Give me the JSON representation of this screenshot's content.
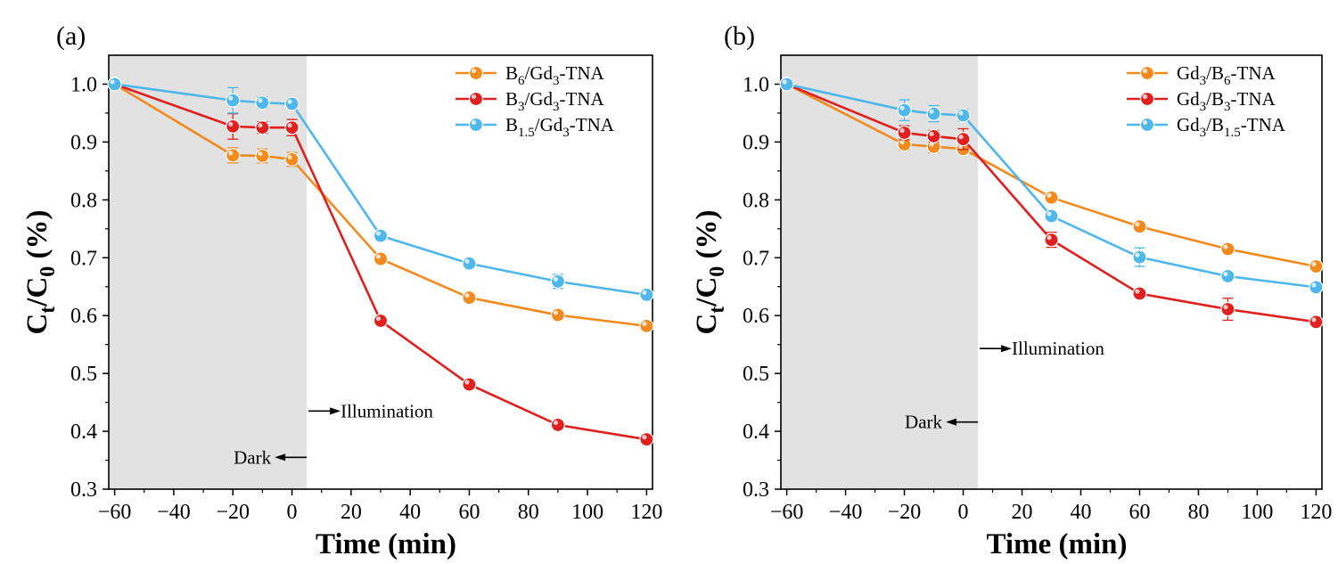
{
  "colors": {
    "orange": "#F28A1E",
    "red": "#E0201F",
    "blue": "#4FB7EA",
    "dark_region": "#E2E2E2",
    "axis": "#000000"
  },
  "chart_data": [
    {
      "type": "line",
      "panel_label": "(a)",
      "xlabel": "Time (min)",
      "ylabel": "Ct/C0 (%)",
      "xlim": [
        -62,
        122
      ],
      "ylim": [
        0.3,
        1.05
      ],
      "xticks": [
        -60,
        -40,
        -20,
        0,
        20,
        40,
        60,
        80,
        100,
        120
      ],
      "xtick_labels": [
        "−60",
        "−40",
        "−20",
        "0",
        "20",
        "40",
        "60",
        "80",
        "100",
        "120"
      ],
      "yticks": [
        0.3,
        0.4,
        0.5,
        0.6,
        0.7,
        0.8,
        0.9,
        1.0
      ],
      "ytick_labels": [
        "0.3",
        "0.4",
        "0.5",
        "0.6",
        "0.7",
        "0.8",
        "0.9",
        "1.0"
      ],
      "dark_region": [
        -62,
        5
      ],
      "annotations": {
        "dark": {
          "text": "Dark",
          "x": 5,
          "y": 0.355,
          "direction": "left"
        },
        "illumination": {
          "text": "Illumination",
          "x": 5,
          "y": 0.435,
          "direction": "right"
        }
      },
      "legend_position": "top-right",
      "series": [
        {
          "name": "B6/Gd3-TNA",
          "legend": {
            "a": "B",
            "a_sub": "6",
            "b": "/Gd",
            "b_sub": "3",
            "c": "-TNA"
          },
          "color_key": "orange",
          "x": [
            -60,
            -20,
            -10,
            0,
            30,
            60,
            90,
            120
          ],
          "y": [
            1.0,
            0.877,
            0.876,
            0.87,
            0.698,
            0.631,
            0.601,
            0.582
          ],
          "err": [
            0,
            0.013,
            0.012,
            0.012,
            0,
            0,
            0,
            0
          ]
        },
        {
          "name": "B3/Gd3-TNA",
          "legend": {
            "a": "B",
            "a_sub": "3",
            "b": "/Gd",
            "b_sub": "3",
            "c": "-TNA"
          },
          "color_key": "red",
          "x": [
            -60,
            -20,
            -10,
            0,
            30,
            60,
            90,
            120
          ],
          "y": [
            1.0,
            0.927,
            0.925,
            0.925,
            0.591,
            0.481,
            0.411,
            0.386
          ],
          "err": [
            0,
            0.022,
            0.01,
            0.014,
            0,
            0,
            0,
            0
          ]
        },
        {
          "name": "B1.5/Gd3-TNA",
          "legend": {
            "a": "B",
            "a_sub": "1.5",
            "b": "/Gd",
            "b_sub": "3",
            "c": "-TNA"
          },
          "color_key": "blue",
          "x": [
            -60,
            -20,
            -10,
            0,
            30,
            60,
            90,
            120
          ],
          "y": [
            1.0,
            0.972,
            0.968,
            0.966,
            0.738,
            0.69,
            0.659,
            0.636
          ],
          "err": [
            0,
            0.022,
            0.01,
            0.008,
            0,
            0,
            0.012,
            0
          ]
        }
      ]
    },
    {
      "type": "line",
      "panel_label": "(b)",
      "xlabel": "Time (min)",
      "ylabel": "Ct/C0 (%)",
      "xlim": [
        -62,
        122
      ],
      "ylim": [
        0.3,
        1.05
      ],
      "xticks": [
        -60,
        -40,
        -20,
        0,
        20,
        40,
        60,
        80,
        100,
        120
      ],
      "xtick_labels": [
        "−60",
        "−40",
        "−20",
        "0",
        "20",
        "40",
        "60",
        "80",
        "100",
        "120"
      ],
      "yticks": [
        0.3,
        0.4,
        0.5,
        0.6,
        0.7,
        0.8,
        0.9,
        1.0
      ],
      "ytick_labels": [
        "0.3",
        "0.4",
        "0.5",
        "0.6",
        "0.7",
        "0.8",
        "0.9",
        "1.0"
      ],
      "dark_region": [
        -62,
        5
      ],
      "annotations": {
        "dark": {
          "text": "Dark",
          "x": 5,
          "y": 0.416,
          "direction": "left"
        },
        "illumination": {
          "text": "Illumination",
          "x": 5,
          "y": 0.543,
          "direction": "right"
        }
      },
      "legend_position": "top-right",
      "series": [
        {
          "name": "Gd3/B6-TNA",
          "legend": {
            "a": "Gd",
            "a_sub": "3",
            "b": "/B",
            "b_sub": "6",
            "c": "-TNA"
          },
          "color_key": "orange",
          "x": [
            -60,
            -20,
            -10,
            0,
            30,
            60,
            90,
            120
          ],
          "y": [
            1.0,
            0.896,
            0.892,
            0.888,
            0.804,
            0.754,
            0.715,
            0.685
          ],
          "err": [
            0,
            0.01,
            0.01,
            0.008,
            0,
            0,
            0,
            0
          ]
        },
        {
          "name": "Gd3/B3-TNA",
          "legend": {
            "a": "Gd",
            "a_sub": "3",
            "b": "/B",
            "b_sub": "3",
            "c": "-TNA"
          },
          "color_key": "red",
          "x": [
            -60,
            -20,
            -10,
            0,
            30,
            60,
            90,
            120
          ],
          "y": [
            1.0,
            0.916,
            0.91,
            0.905,
            0.731,
            0.638,
            0.611,
            0.589
          ],
          "err": [
            0,
            0.012,
            0.01,
            0.018,
            0.013,
            0,
            0.019,
            0
          ]
        },
        {
          "name": "Gd3/B1.5-TNA",
          "legend": {
            "a": "Gd",
            "a_sub": "3",
            "b": "/B",
            "b_sub": "1.5",
            "c": "-TNA"
          },
          "color_key": "blue",
          "x": [
            -60,
            -20,
            -10,
            0,
            30,
            60,
            90,
            120
          ],
          "y": [
            1.0,
            0.955,
            0.949,
            0.946,
            0.772,
            0.701,
            0.668,
            0.649
          ],
          "err": [
            0,
            0.018,
            0.014,
            0.01,
            0,
            0.016,
            0,
            0
          ]
        }
      ]
    }
  ]
}
